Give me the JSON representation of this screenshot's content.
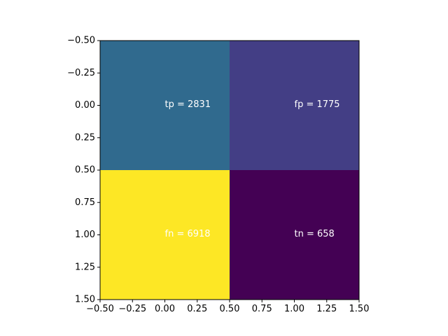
{
  "chart_data": {
    "type": "heatmap",
    "title": "",
    "xlabel": "",
    "ylabel": "",
    "xlim": [
      -0.5,
      1.5
    ],
    "ylim": [
      1.5,
      -0.5
    ],
    "xticks": [
      -0.5,
      -0.25,
      0.0,
      0.25,
      0.5,
      0.75,
      1.0,
      1.25,
      1.5
    ],
    "yticks": [
      -0.5,
      -0.25,
      0.0,
      0.25,
      0.5,
      0.75,
      1.0,
      1.25,
      1.5
    ],
    "xtick_labels": [
      "−0.50",
      "−0.25",
      "0.00",
      "0.25",
      "0.50",
      "0.75",
      "1.00",
      "1.25",
      "1.50"
    ],
    "ytick_labels": [
      "−0.50",
      "−0.25",
      "0.00",
      "0.25",
      "0.50",
      "0.75",
      "1.00",
      "1.25",
      "1.50"
    ],
    "colormap": "viridis",
    "values": [
      [
        2831,
        1775
      ],
      [
        6918,
        658
      ]
    ],
    "cell_labels": [
      [
        "tp = 2831",
        "fp = 1775"
      ],
      [
        "fn = 6918",
        "tn = 658"
      ]
    ],
    "colors": [
      [
        "#306a8e",
        "#433e85"
      ],
      [
        "#fde725",
        "#440154"
      ]
    ],
    "grid": false
  }
}
